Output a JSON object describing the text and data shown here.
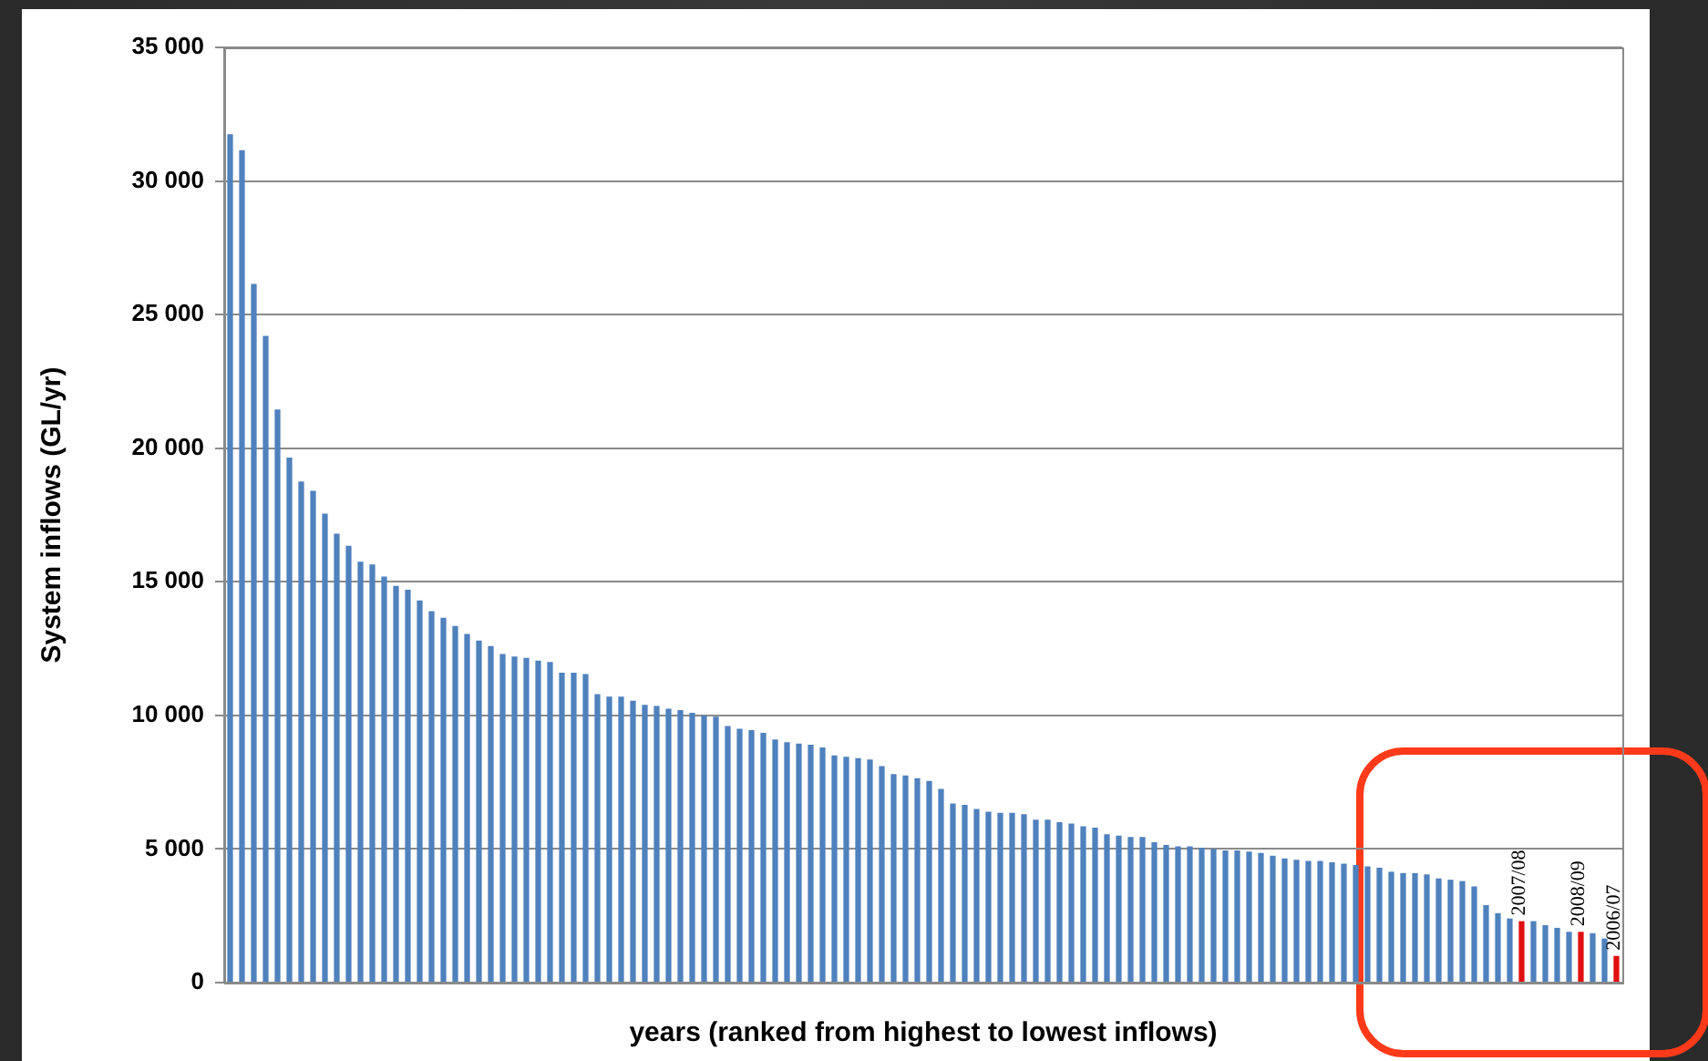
{
  "chart_data": {
    "type": "bar",
    "xlabel": "years (ranked from highest to lowest inflows)",
    "ylabel": "System inflows (GL/yr)",
    "categories": [
      null,
      null,
      null,
      null,
      null,
      null,
      null,
      null,
      null,
      null,
      null,
      null,
      null,
      null,
      null,
      null,
      null,
      null,
      null,
      null,
      null,
      null,
      null,
      null,
      null,
      null,
      null,
      null,
      null,
      null,
      null,
      null,
      null,
      null,
      null,
      null,
      null,
      null,
      null,
      null,
      null,
      null,
      null,
      null,
      null,
      null,
      null,
      null,
      null,
      null,
      null,
      null,
      null,
      null,
      null,
      null,
      null,
      null,
      null,
      null,
      null,
      null,
      null,
      null,
      null,
      null,
      null,
      null,
      null,
      null,
      null,
      null,
      null,
      null,
      null,
      null,
      null,
      null,
      null,
      null,
      null,
      null,
      null,
      null,
      null,
      null,
      null,
      null,
      null,
      null,
      null,
      null,
      null,
      null,
      null,
      null,
      null,
      null,
      null,
      null,
      null,
      null,
      null,
      null,
      null,
      null,
      null,
      null,
      null,
      null,
      null,
      null,
      null,
      null,
      null,
      null,
      null,
      null
    ],
    "values": [
      31750,
      31150,
      26150,
      24200,
      21450,
      19650,
      18750,
      18400,
      17550,
      16800,
      16350,
      15750,
      15650,
      15200,
      14850,
      14700,
      14300,
      13900,
      13650,
      13350,
      13050,
      12800,
      12600,
      12300,
      12200,
      12150,
      12050,
      12000,
      11600,
      11600,
      11550,
      10800,
      10700,
      10700,
      10550,
      10400,
      10350,
      10250,
      10200,
      10100,
      10000,
      9950,
      9600,
      9500,
      9450,
      9350,
      9100,
      9000,
      8950,
      8900,
      8800,
      8500,
      8450,
      8400,
      8350,
      8100,
      7800,
      7750,
      7650,
      7550,
      7250,
      6700,
      6650,
      6500,
      6400,
      6350,
      6350,
      6300,
      6100,
      6100,
      6000,
      5950,
      5850,
      5800,
      5550,
      5500,
      5450,
      5450,
      5250,
      5150,
      5100,
      5100,
      5050,
      5000,
      4950,
      4950,
      4900,
      4850,
      4750,
      4650,
      4600,
      4550,
      4550,
      4500,
      4450,
      4400,
      4350,
      4300,
      4150,
      4100,
      4100,
      4050,
      3900,
      3850,
      3800,
      3600,
      2900,
      2600,
      2400,
      2300,
      2300,
      2150,
      2050,
      1900,
      1900,
      1850,
      1650,
      1000
    ],
    "colors": [
      "#4f81bd",
      "#4f81bd",
      "#4f81bd",
      "#4f81bd",
      "#4f81bd",
      "#4f81bd",
      "#4f81bd",
      "#4f81bd",
      "#4f81bd",
      "#4f81bd",
      "#4f81bd",
      "#4f81bd",
      "#4f81bd",
      "#4f81bd",
      "#4f81bd",
      "#4f81bd",
      "#4f81bd",
      "#4f81bd",
      "#4f81bd",
      "#4f81bd",
      "#4f81bd",
      "#4f81bd",
      "#4f81bd",
      "#4f81bd",
      "#4f81bd",
      "#4f81bd",
      "#4f81bd",
      "#4f81bd",
      "#4f81bd",
      "#4f81bd",
      "#4f81bd",
      "#4f81bd",
      "#4f81bd",
      "#4f81bd",
      "#4f81bd",
      "#4f81bd",
      "#4f81bd",
      "#4f81bd",
      "#4f81bd",
      "#4f81bd",
      "#4f81bd",
      "#4f81bd",
      "#4f81bd",
      "#4f81bd",
      "#4f81bd",
      "#4f81bd",
      "#4f81bd",
      "#4f81bd",
      "#4f81bd",
      "#4f81bd",
      "#4f81bd",
      "#4f81bd",
      "#4f81bd",
      "#4f81bd",
      "#4f81bd",
      "#4f81bd",
      "#4f81bd",
      "#4f81bd",
      "#4f81bd",
      "#4f81bd",
      "#4f81bd",
      "#4f81bd",
      "#4f81bd",
      "#4f81bd",
      "#4f81bd",
      "#4f81bd",
      "#4f81bd",
      "#4f81bd",
      "#4f81bd",
      "#4f81bd",
      "#4f81bd",
      "#4f81bd",
      "#4f81bd",
      "#4f81bd",
      "#4f81bd",
      "#4f81bd",
      "#4f81bd",
      "#4f81bd",
      "#4f81bd",
      "#4f81bd",
      "#4f81bd",
      "#4f81bd",
      "#4f81bd",
      "#4f81bd",
      "#4f81bd",
      "#4f81bd",
      "#4f81bd",
      "#4f81bd",
      "#4f81bd",
      "#4f81bd",
      "#4f81bd",
      "#4f81bd",
      "#4f81bd",
      "#4f81bd",
      "#4f81bd",
      "#4f81bd",
      "#4f81bd",
      "#4f81bd",
      "#4f81bd",
      "#4f81bd",
      "#4f81bd",
      "#4f81bd",
      "#4f81bd",
      "#4f81bd",
      "#4f81bd",
      "#4f81bd",
      "#4f81bd",
      "#4f81bd",
      "#4f81bd",
      "#e01010",
      "#4f81bd",
      "#4f81bd",
      "#4f81bd",
      "#4f81bd",
      "#e01010",
      "#4f81bd",
      "#4f81bd",
      "#e01010"
    ],
    "value_labels": [
      null,
      null,
      null,
      null,
      null,
      null,
      null,
      null,
      null,
      null,
      null,
      null,
      null,
      null,
      null,
      null,
      null,
      null,
      null,
      null,
      null,
      null,
      null,
      null,
      null,
      null,
      null,
      null,
      null,
      null,
      null,
      null,
      null,
      null,
      null,
      null,
      null,
      null,
      null,
      null,
      null,
      null,
      null,
      null,
      null,
      null,
      null,
      null,
      null,
      null,
      null,
      null,
      null,
      null,
      null,
      null,
      null,
      null,
      null,
      null,
      null,
      null,
      null,
      null,
      null,
      null,
      null,
      null,
      null,
      null,
      null,
      null,
      null,
      null,
      null,
      null,
      null,
      null,
      null,
      null,
      null,
      null,
      null,
      null,
      null,
      null,
      null,
      null,
      null,
      null,
      null,
      null,
      null,
      null,
      null,
      null,
      null,
      null,
      null,
      null,
      null,
      null,
      null,
      null,
      null,
      null,
      null,
      null,
      null,
      "2007/08",
      null,
      null,
      null,
      null,
      "2008/09",
      null,
      null,
      "2006/07"
    ],
    "ylim": [
      0,
      35000
    ],
    "yticks": [
      {
        "value": 0,
        "label": "0"
      },
      {
        "value": 5000,
        "label": "5 000"
      },
      {
        "value": 10000,
        "label": "10 000"
      },
      {
        "value": 15000,
        "label": "15 000"
      },
      {
        "value": 20000,
        "label": "20 000"
      },
      {
        "value": 25000,
        "label": "25 000"
      },
      {
        "value": 30000,
        "label": "30 000"
      },
      {
        "value": 35000,
        "label": "35 000"
      }
    ],
    "grid": "y",
    "legend": false
  }
}
